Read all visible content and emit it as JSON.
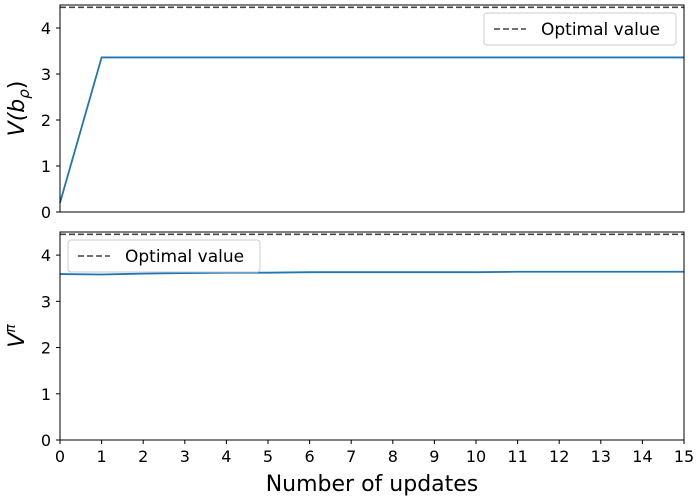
{
  "colors": {
    "series_line": "#1f77b4",
    "optimal_line": "#444444",
    "axis": "#000000",
    "legend_border": "#cccccc"
  },
  "chart_data": [
    {
      "type": "line",
      "ylabel_parts": {
        "base": "V(b",
        "sub": "ρ",
        "close": ")"
      },
      "xlabel": "",
      "xlim": [
        0,
        15
      ],
      "ylim": [
        0,
        4.5
      ],
      "yticks": [
        0,
        1,
        2,
        3,
        4
      ],
      "show_xtick_labels": false,
      "legend": {
        "position": "top-right",
        "entries": [
          "Optimal value"
        ]
      },
      "optimal_value": 4.45,
      "series": [
        {
          "x": [
            0,
            1,
            2,
            3,
            4,
            5,
            6,
            7,
            8,
            9,
            10,
            11,
            12,
            13,
            14,
            15
          ],
          "values": [
            0.2,
            3.36,
            3.36,
            3.36,
            3.36,
            3.36,
            3.36,
            3.36,
            3.36,
            3.36,
            3.36,
            3.36,
            3.36,
            3.36,
            3.36,
            3.36
          ]
        }
      ],
      "grid": false
    },
    {
      "type": "line",
      "ylabel_parts": {
        "base": "V",
        "sup": "π"
      },
      "xlabel": "Number of updates",
      "xlim": [
        0,
        15
      ],
      "ylim": [
        0,
        4.5
      ],
      "yticks": [
        0,
        1,
        2,
        3,
        4
      ],
      "xticks": [
        0,
        1,
        2,
        3,
        4,
        5,
        6,
        7,
        8,
        9,
        10,
        11,
        12,
        13,
        14,
        15
      ],
      "show_xtick_labels": true,
      "legend": {
        "position": "top-left",
        "entries": [
          "Optimal value"
        ]
      },
      "optimal_value": 4.45,
      "series": [
        {
          "x": [
            0,
            1,
            2,
            3,
            4,
            5,
            6,
            7,
            8,
            9,
            10,
            11,
            12,
            13,
            14,
            15
          ],
          "values": [
            3.59,
            3.58,
            3.6,
            3.61,
            3.62,
            3.62,
            3.63,
            3.63,
            3.63,
            3.63,
            3.63,
            3.64,
            3.64,
            3.64,
            3.64,
            3.64
          ]
        }
      ],
      "grid": false
    }
  ]
}
